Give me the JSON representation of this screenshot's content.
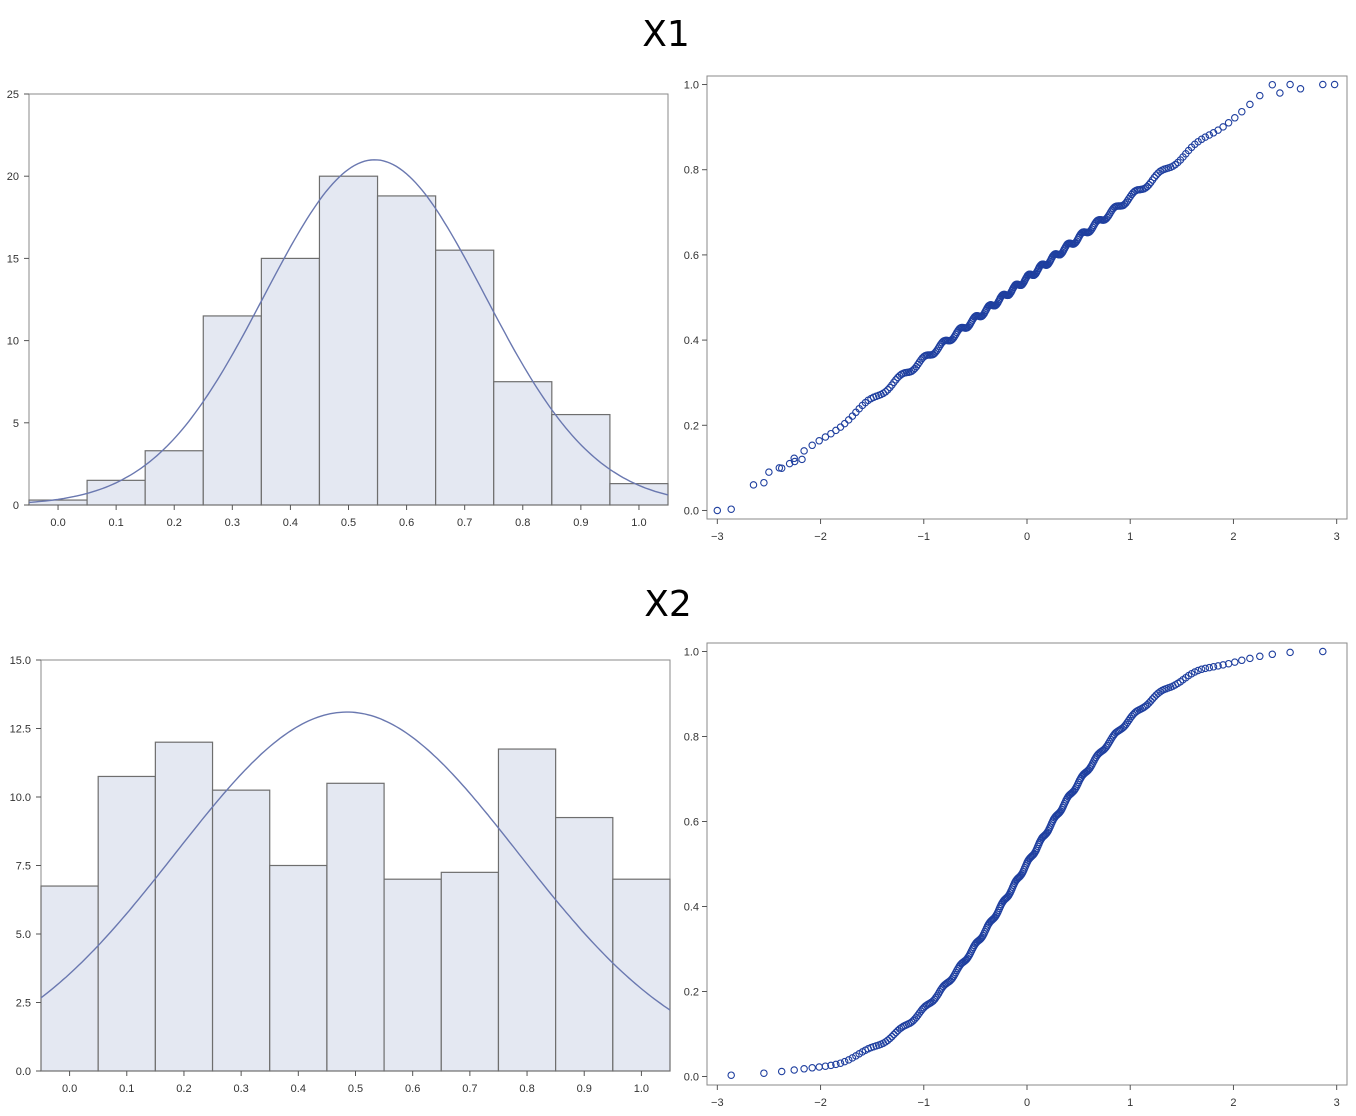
{
  "section_titles": [
    "X1",
    "X2"
  ],
  "chart_data": [
    {
      "type": "bar",
      "panel": "x1-histogram",
      "bin_centers": [
        0.0,
        0.1,
        0.2,
        0.3,
        0.4,
        0.5,
        0.6,
        0.7,
        0.8,
        0.9,
        1.0
      ],
      "values": [
        0.3,
        1.5,
        3.3,
        11.5,
        15.0,
        20.0,
        18.8,
        15.5,
        7.5,
        5.5,
        1.3
      ],
      "bin_width": 0.1,
      "xticks": [
        "0.0",
        "0.1",
        "0.2",
        "0.3",
        "0.4",
        "0.5",
        "0.6",
        "0.7",
        "0.8",
        "0.9",
        "1.0"
      ],
      "yticks": [
        "0",
        "5",
        "10",
        "15",
        "20",
        "25"
      ],
      "xlim": [
        -0.05,
        1.05
      ],
      "ylim": [
        0,
        25
      ],
      "normal_curve": {
        "mean": 0.545,
        "sd": 0.19,
        "peak": 21.0
      },
      "colors": {
        "bar_fill": "#e4e8f2",
        "bar_stroke": "#6e6e6e",
        "curve": "#6a78b0"
      }
    },
    {
      "type": "scatter",
      "panel": "x1-qq-plot",
      "xticks": [
        "−3",
        "−2",
        "−1",
        "0",
        "1",
        "2",
        "3"
      ],
      "yticks": [
        "0.0",
        "0.2",
        "0.4",
        "0.6",
        "0.8",
        "1.0"
      ],
      "xlim": [
        -3.1,
        3.1
      ],
      "ylim": [
        -0.02,
        1.02
      ],
      "quantile_curve": {
        "kind": "normal",
        "mean": 0.545,
        "sd": 0.19,
        "n": 300
      },
      "highlighted_points": [
        [
          -3.0,
          0.0
        ],
        [
          -2.65,
          0.06
        ],
        [
          -2.5,
          0.09
        ],
        [
          -2.4,
          0.1
        ],
        [
          -2.3,
          0.11
        ],
        [
          -2.25,
          0.115
        ],
        [
          -2.18,
          0.12
        ],
        [
          2.45,
          0.98
        ],
        [
          2.65,
          0.99
        ],
        [
          2.98,
          1.0
        ]
      ],
      "colors": {
        "marker": "#1f3f9f"
      }
    },
    {
      "type": "bar",
      "panel": "x2-histogram",
      "bin_centers": [
        0.0,
        0.1,
        0.2,
        0.3,
        0.4,
        0.5,
        0.6,
        0.7,
        0.8,
        0.9,
        1.0
      ],
      "values": [
        6.75,
        10.75,
        12.0,
        10.25,
        7.5,
        10.5,
        7.0,
        7.25,
        11.75,
        9.25,
        7.0
      ],
      "bin_width": 0.1,
      "xticks": [
        "0.0",
        "0.1",
        "0.2",
        "0.3",
        "0.4",
        "0.5",
        "0.6",
        "0.7",
        "0.8",
        "0.9",
        "1.0"
      ],
      "yticks": [
        "0.0",
        "2.5",
        "5.0",
        "7.5",
        "10.0",
        "12.5",
        "15.0"
      ],
      "xlim": [
        -0.05,
        1.05
      ],
      "ylim": [
        0,
        15
      ],
      "normal_curve": {
        "mean": 0.485,
        "sd": 0.3,
        "peak": 13.1
      },
      "colors": {
        "bar_fill": "#e4e8f2",
        "bar_stroke": "#6e6e6e",
        "curve": "#6a78b0"
      }
    },
    {
      "type": "scatter",
      "panel": "x2-qq-plot",
      "xticks": [
        "−3",
        "−2",
        "−1",
        "0",
        "1",
        "2",
        "3"
      ],
      "yticks": [
        "0.0",
        "0.2",
        "0.4",
        "0.6",
        "0.8",
        "1.0"
      ],
      "xlim": [
        -3.1,
        3.1
      ],
      "ylim": [
        -0.02,
        1.02
      ],
      "quantile_curve": {
        "kind": "uniform",
        "min": 0.0,
        "max": 1.0,
        "n": 300
      },
      "colors": {
        "marker": "#1f3f9f"
      }
    }
  ]
}
